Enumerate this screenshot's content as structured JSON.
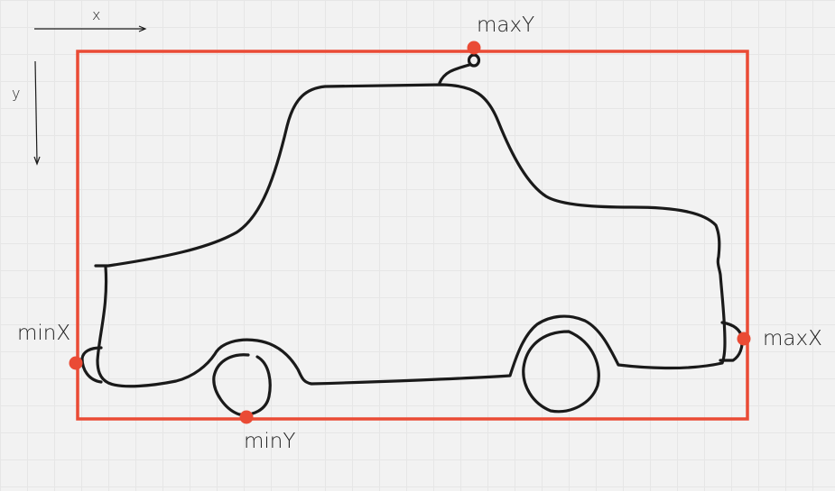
{
  "colors": {
    "outline": "#1a1a1a",
    "bounding_box": "#ea4b35",
    "marker": "#ea4b35",
    "label": "#222222"
  },
  "axes": {
    "x_label": "x",
    "y_label": "y"
  },
  "points": {
    "max_y": "maxY",
    "min_y": "minY",
    "min_x": "minX",
    "max_x": "maxX"
  }
}
